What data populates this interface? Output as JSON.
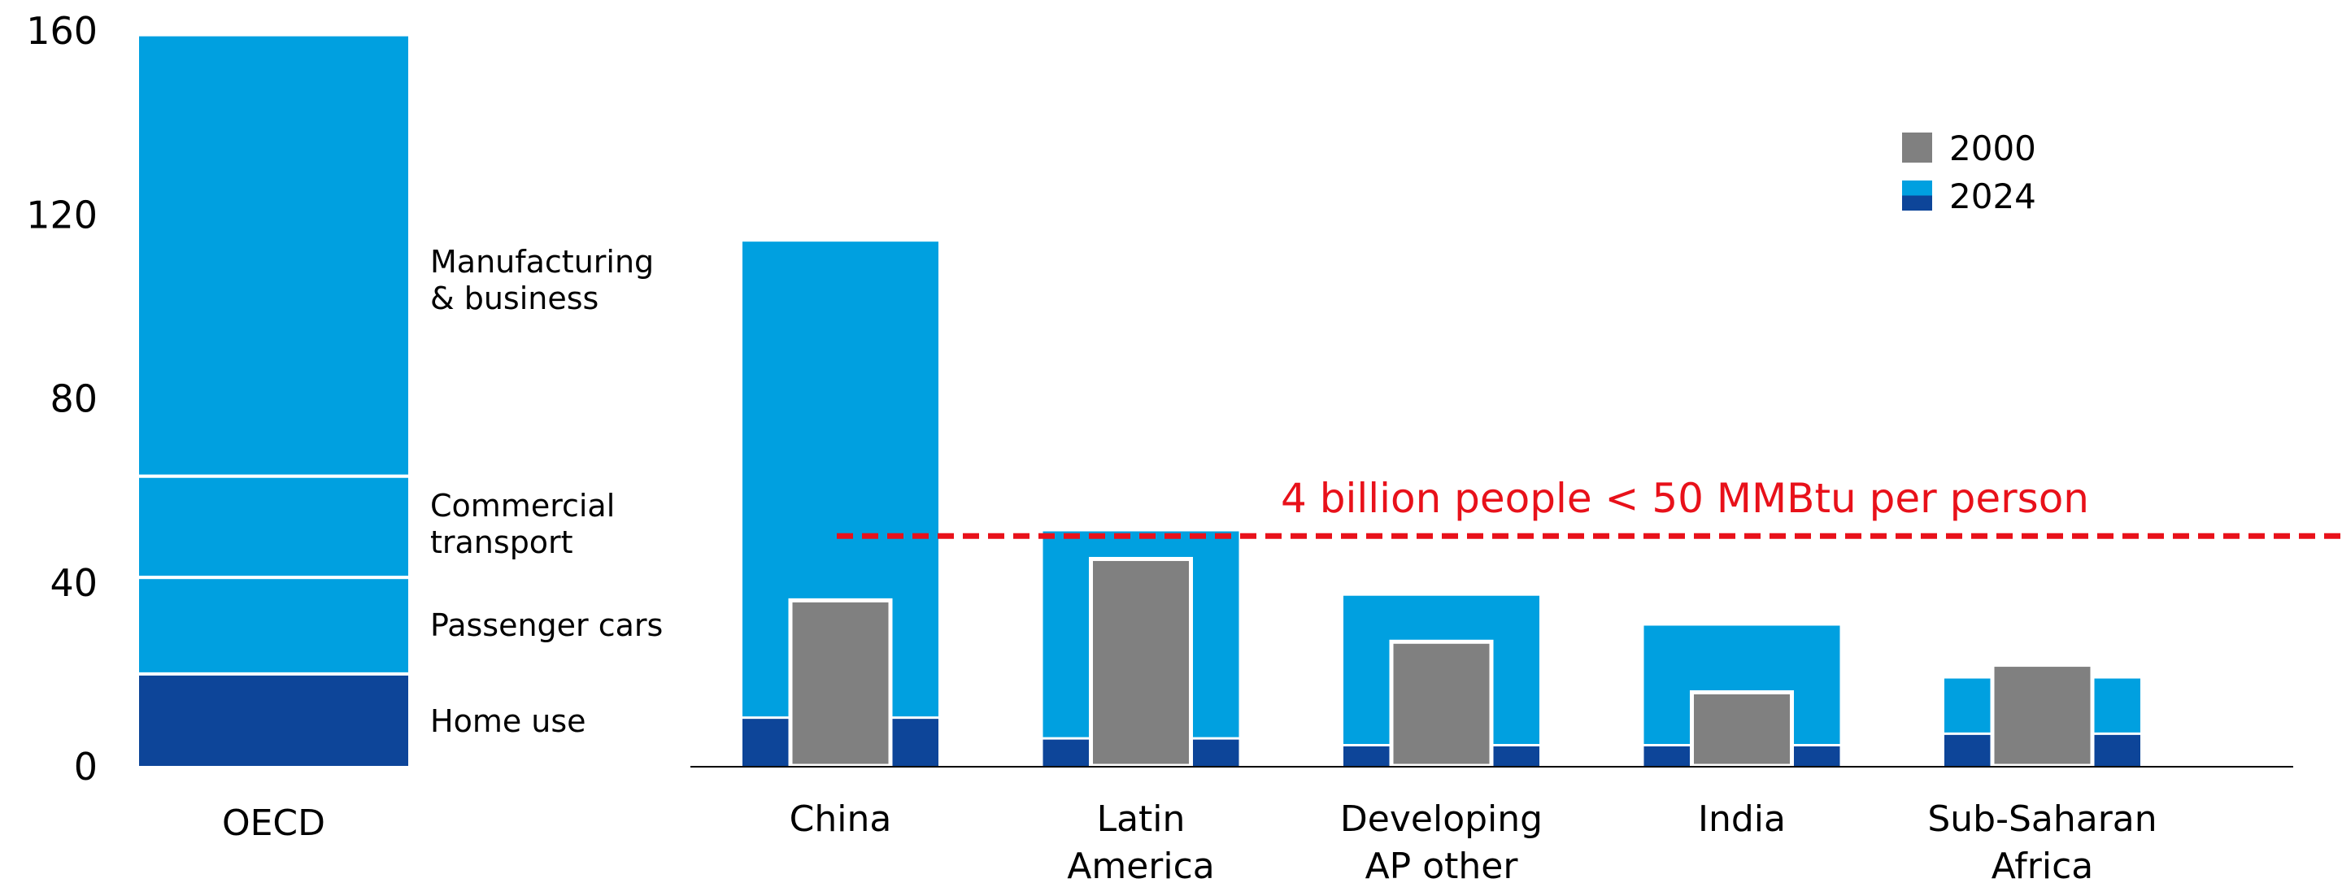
{
  "chart_data": {
    "type": "bar",
    "title": "",
    "xlabel": "",
    "ylabel": "",
    "ylim": [
      0,
      160
    ],
    "yticks": [
      "0",
      "40",
      "80",
      "120",
      "160"
    ],
    "grid": false,
    "legend_placement": "top-right",
    "colors": {
      "2000": "#808080",
      "2024_light": "#00a0e0",
      "2024_dark": "#0d4599",
      "threshold": "#e8111a"
    },
    "legend": [
      {
        "label": "2000",
        "colors": [
          "#808080"
        ]
      },
      {
        "label": "2024",
        "colors": [
          "#00a0e0",
          "#0d4599"
        ]
      }
    ],
    "oecd": {
      "category": "OECD",
      "segments": [
        {
          "name": "Home use",
          "value": 20,
          "color": "#0d4599"
        },
        {
          "name": "Passenger cars",
          "value": 21,
          "color": "#00a0e0"
        },
        {
          "name": "Commercial transport",
          "label_lines": [
            "Commercial",
            "transport"
          ],
          "value": 22,
          "color": "#00a0e0"
        },
        {
          "name": "Manufacturing & business",
          "label_lines": [
            "Manufacturing",
            "& business"
          ],
          "value": 96,
          "color": "#00a0e0"
        }
      ]
    },
    "regions": [
      {
        "category_lines": [
          "China"
        ],
        "total_2024": 114,
        "home_2024": 10.5,
        "total_2000": 36
      },
      {
        "category_lines": [
          "Latin",
          "America"
        ],
        "total_2024": 51,
        "home_2024": 6,
        "total_2000": 45
      },
      {
        "category_lines": [
          "Developing",
          "AP other"
        ],
        "total_2024": 37,
        "home_2024": 4.5,
        "total_2000": 27
      },
      {
        "category_lines": [
          "India"
        ],
        "total_2024": 30.5,
        "home_2024": 4.5,
        "total_2000": 16
      },
      {
        "category_lines": [
          "Sub-Saharan",
          "Africa"
        ],
        "total_2024": 19,
        "home_2024": 7,
        "total_2000": 22
      }
    ],
    "annotation": {
      "text": "4 billion people < 50 MMBtu per person",
      "value": 50
    }
  }
}
